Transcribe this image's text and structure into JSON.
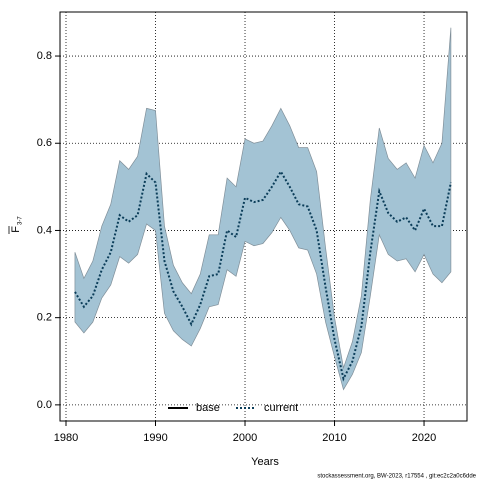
{
  "chart_data": {
    "type": "line",
    "xlabel": "Years",
    "ylabel": "F",
    "ylabel_sub": "3-7",
    "footnote": "stockassessment.org, BW-2023, r17554 , git:ec2c2a0c6dde",
    "x": [
      1981,
      1982,
      1983,
      1984,
      1985,
      1986,
      1987,
      1988,
      1989,
      1990,
      1991,
      1992,
      1993,
      1994,
      1995,
      1996,
      1997,
      1998,
      1999,
      2000,
      2001,
      2002,
      2003,
      2004,
      2005,
      2006,
      2007,
      2008,
      2009,
      2010,
      2011,
      2012,
      2013,
      2014,
      2015,
      2016,
      2017,
      2018,
      2019,
      2020,
      2021,
      2022,
      2023
    ],
    "series": [
      {
        "name": "current",
        "color": "#0b3d59",
        "dash": true,
        "values": [
          0.259,
          0.225,
          0.25,
          0.31,
          0.35,
          0.435,
          0.42,
          0.435,
          0.53,
          0.51,
          0.33,
          0.26,
          0.225,
          0.185,
          0.23,
          0.295,
          0.3,
          0.4,
          0.385,
          0.475,
          0.465,
          0.47,
          0.5,
          0.535,
          0.5,
          0.46,
          0.455,
          0.4,
          0.27,
          0.15,
          0.06,
          0.1,
          0.18,
          0.35,
          0.49,
          0.44,
          0.42,
          0.43,
          0.4,
          0.45,
          0.41,
          0.41,
          0.51
        ],
        "upper": [
          0.35,
          0.29,
          0.33,
          0.41,
          0.46,
          0.56,
          0.54,
          0.57,
          0.68,
          0.675,
          0.41,
          0.32,
          0.28,
          0.255,
          0.3,
          0.39,
          0.39,
          0.52,
          0.5,
          0.61,
          0.6,
          0.605,
          0.64,
          0.68,
          0.64,
          0.59,
          0.59,
          0.535,
          0.36,
          0.2,
          0.085,
          0.145,
          0.25,
          0.47,
          0.635,
          0.565,
          0.54,
          0.555,
          0.52,
          0.595,
          0.555,
          0.6,
          0.865
        ],
        "lower": [
          0.19,
          0.165,
          0.19,
          0.245,
          0.275,
          0.34,
          0.325,
          0.345,
          0.415,
          0.4,
          0.21,
          0.17,
          0.15,
          0.135,
          0.175,
          0.225,
          0.23,
          0.31,
          0.295,
          0.375,
          0.365,
          0.37,
          0.395,
          0.43,
          0.4,
          0.36,
          0.355,
          0.3,
          0.19,
          0.11,
          0.035,
          0.07,
          0.12,
          0.25,
          0.39,
          0.345,
          0.33,
          0.335,
          0.305,
          0.345,
          0.3,
          0.28,
          0.305
        ]
      }
    ],
    "legend": [
      {
        "name": "base",
        "color": "#000000",
        "dash": false
      },
      {
        "name": "current",
        "color": "#0b3d59",
        "dash": true
      }
    ],
    "band_color": "#a3c3d4",
    "xlim": [
      1979.33,
      2024.8
    ],
    "ylim": [
      -0.037,
      0.901
    ],
    "xticks": [
      1980,
      1990,
      2000,
      2010,
      2020
    ],
    "yticks": [
      {
        "value": 0,
        "label": "0.0"
      },
      0.2,
      0.4,
      0.6,
      0.8
    ],
    "grid": true
  }
}
